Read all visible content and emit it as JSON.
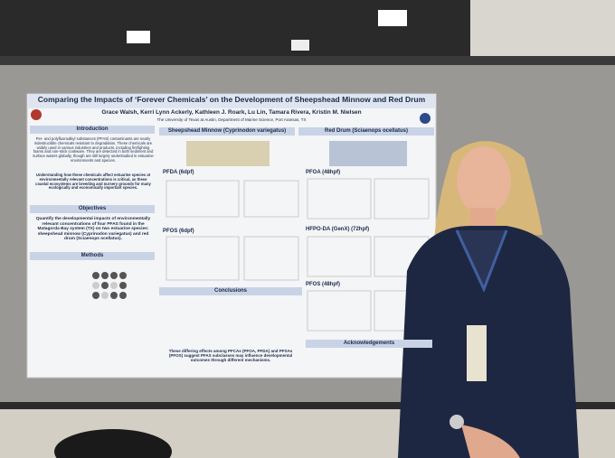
{
  "poster": {
    "title": "Comparing the Impacts of ‘Forever Chemicals’ on the Development of Sheepshead Minnow and Red Drum",
    "authors": "Grace Walsh, Kerri Lynn Ackerly, Kathleen J. Roark, Lu Lin, Tamara Rivera, Kristin M. Nielsen",
    "affiliation": "The University of Texas at Austin, Department of Marine Science, Port Aransas, TX",
    "introduction": {
      "heading": "Introduction",
      "text": "Per- and polyfluoroalkyl substances (PFAS) contaminants are nearly indestructible chemicals resistant to degradation. These chemicals are widely used in various industries and products, including firefighting foams and non-stick cookware. They are detected in both sediment and surface waters globally, though are still largely understudied in estuarine environments and species.",
      "emphasis": "Understanding how these chemicals affect estuarine species at environmentally relevant concentrations is critical, as these coastal ecosystems are breeding and nursery grounds for many ecologically and economically important species."
    },
    "objectives": {
      "heading": "Objectives",
      "text": "Quantify the developmental impacts of environmentally relevant concentrations of four PFAS found in the Matagorda Bay system (TX) on two estuarine species: sheepshead minnow (Cyprinodon variegatus) and red drum (Sciaenops ocellatus)."
    },
    "methods": {
      "heading": "Methods"
    },
    "species": [
      "Sheepshead Minnow (Cyprinodon variegatus)",
      "Red Drum (Sciaenops ocellatus)"
    ],
    "panels": [
      "PFDA (6dpf)",
      "PFOS (6dpf)",
      "PFOA (48hpf)",
      "HFPO-DA (GenX) (72hpf)",
      "PFOS (48hpf)"
    ],
    "conclusions": {
      "heading": "Conclusions",
      "text": "These differing effects among PFCAs (PFOA, PFDA) and PFSAs (PFOS) suggest PFAS subclasses may influence developmental outcomes through different mechanisms."
    },
    "acknowledgements": {
      "heading": "Acknowledgements"
    }
  }
}
